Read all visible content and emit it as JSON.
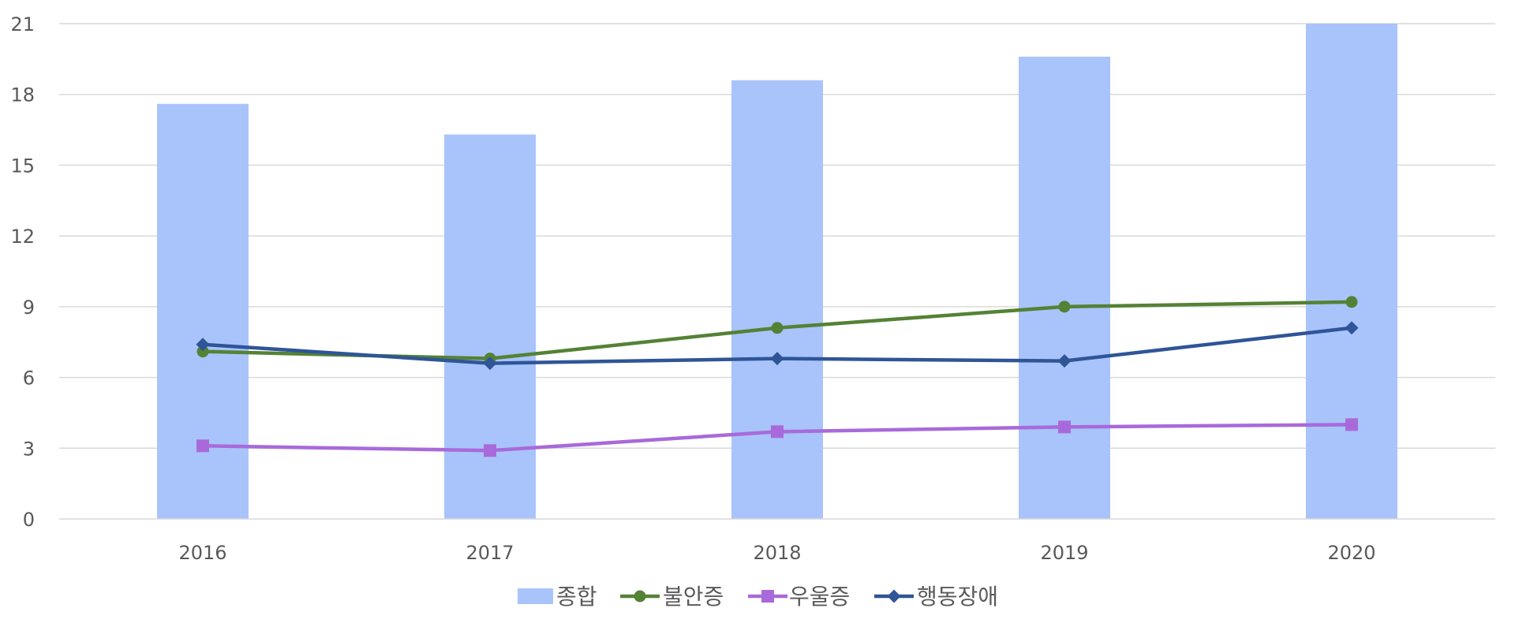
{
  "chart_data": {
    "type": "bar",
    "categories": [
      "2016",
      "2017",
      "2018",
      "2019",
      "2020"
    ],
    "ylim": [
      0,
      21
    ],
    "yticks": [
      0,
      3,
      6,
      9,
      12,
      15,
      18,
      21
    ],
    "grid": true,
    "legend_position": "bottom",
    "series": [
      {
        "name": "종합",
        "kind": "bar",
        "color": "#A9C4FB",
        "values": [
          17.6,
          16.3,
          18.6,
          19.6,
          21.0
        ]
      },
      {
        "name": "불안증",
        "kind": "line",
        "marker": "circle",
        "color": "#548235",
        "values": [
          7.1,
          6.8,
          8.1,
          9.0,
          9.2
        ]
      },
      {
        "name": "우울증",
        "kind": "line",
        "marker": "square",
        "color": "#A86ADB",
        "values": [
          3.1,
          2.9,
          3.7,
          3.9,
          4.0
        ]
      },
      {
        "name": "행동장애",
        "kind": "line",
        "marker": "diamond",
        "color": "#2F5597",
        "values": [
          7.4,
          6.6,
          6.8,
          6.7,
          8.1
        ]
      }
    ]
  }
}
